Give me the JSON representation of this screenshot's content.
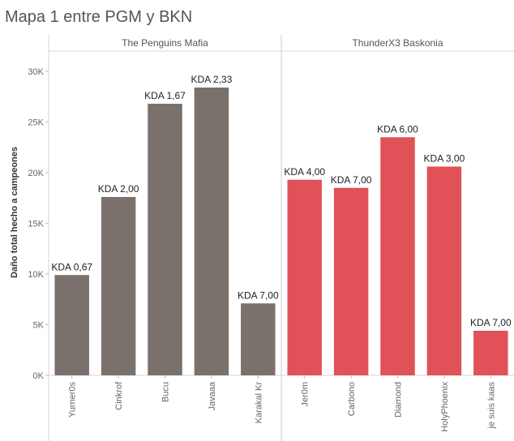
{
  "title": "Mapa 1 entre PGM y BKN",
  "chart_data": {
    "type": "bar",
    "ylabel": "Daño total hecho a campeones",
    "ylim": [
      0,
      32000
    ],
    "yticks": [
      0,
      5000,
      10000,
      15000,
      20000,
      25000,
      30000
    ],
    "ytick_labels": [
      "0K",
      "5K",
      "10K",
      "15K",
      "20K",
      "25K",
      "30K"
    ],
    "grid": false,
    "panels": [
      {
        "name": "The Penguins Mafia",
        "color": "#7a716d",
        "categories": [
          "Yurner0s",
          "Cinkrof",
          "Bucu",
          "Javaaa",
          "Karakal Kr"
        ],
        "values": [
          9900,
          17600,
          26800,
          28400,
          7100
        ],
        "labels": [
          "KDA 0,67",
          "KDA 2,00",
          "KDA 1,67",
          "KDA 2,33",
          "KDA 7,00"
        ]
      },
      {
        "name": "ThunderX3 Baskonia",
        "color": "#e05257",
        "categories": [
          "Jer0m",
          "Carbono",
          "Diamond",
          "HolyPhoenix",
          "je suis kaas"
        ],
        "values": [
          19300,
          18500,
          23500,
          20600,
          4400
        ],
        "labels": [
          "KDA 4,00",
          "KDA 7,00",
          "KDA 6,00",
          "KDA 3,00",
          "KDA 7,00"
        ]
      }
    ]
  }
}
